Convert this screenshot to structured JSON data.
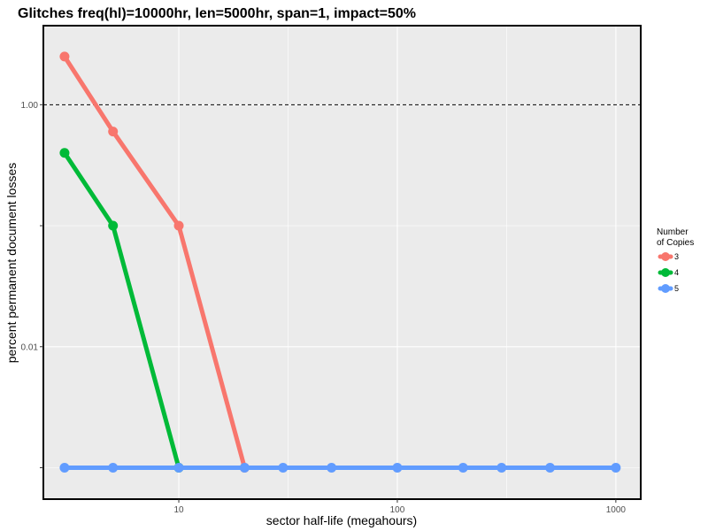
{
  "chart_data": {
    "type": "line",
    "title": "Glitches freq(hl)=10000hr, len=5000hr, span=1, impact=50%",
    "xlabel": "sector half-life (megahours)",
    "ylabel": "percent permanent document losses",
    "x_scale": "log",
    "y_scale": "log",
    "xlim": [
      2.4,
      1300
    ],
    "ylim": [
      0.00055,
      4.5
    ],
    "x_ticks": [
      10,
      100,
      1000
    ],
    "x_tick_labels": [
      "10",
      "100",
      "1000"
    ],
    "y_ticks": [
      0.01,
      1
    ],
    "y_tick_labels": [
      "0.01",
      "1.00"
    ],
    "y_minor_ticks": [
      0.001,
      0.1
    ],
    "reference_line": {
      "y": 1,
      "style": "dashed"
    },
    "grid": true,
    "legend": {
      "title": "Number\nof Copies",
      "title_lines": [
        "Number",
        "of Copies"
      ],
      "position": "right"
    },
    "series": [
      {
        "name": "3",
        "color": "#F8766D",
        "x": [
          3,
          5,
          10,
          20
        ],
        "y": [
          2.5,
          0.6,
          0.1,
          0.001
        ]
      },
      {
        "name": "4",
        "color": "#00BA38",
        "x": [
          3,
          5,
          10
        ],
        "y": [
          0.4,
          0.1,
          0.001
        ]
      },
      {
        "name": "5",
        "color": "#619CFF",
        "x": [
          3,
          5,
          10,
          20,
          30,
          50,
          100,
          200,
          300,
          500,
          1000
        ],
        "y": [
          0.001,
          0.001,
          0.001,
          0.001,
          0.001,
          0.001,
          0.001,
          0.001,
          0.001,
          0.001,
          0.001
        ]
      }
    ]
  }
}
